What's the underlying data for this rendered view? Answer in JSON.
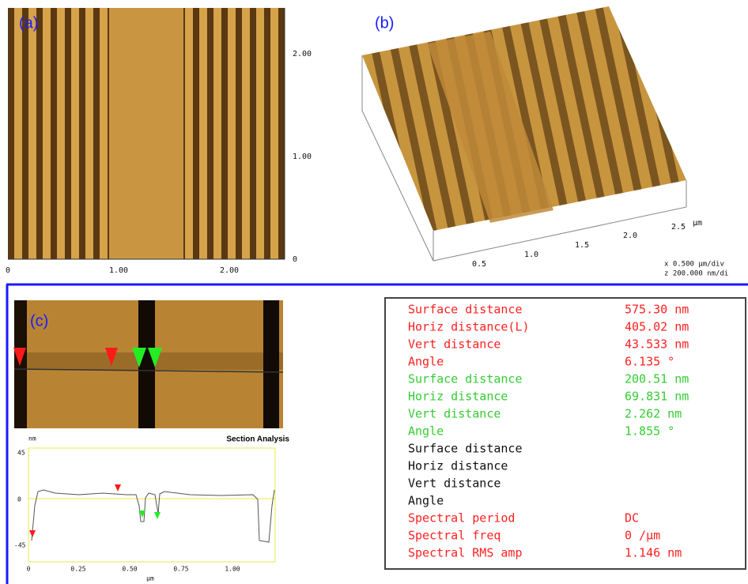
{
  "panel_a": {
    "label": "(a)",
    "x_ticks": [
      "0",
      "1.00",
      "2.00"
    ],
    "y_ticks": [
      "2.00",
      "1.00",
      "0"
    ]
  },
  "panel_b": {
    "label": "(b)",
    "x_ticks": [
      "0.5",
      "1.0",
      "1.5",
      "2.0",
      "2.5"
    ],
    "x_unit": "µm",
    "scale_lines": [
      "x  0.500 µm/div",
      "z  200.000 nm/di"
    ]
  },
  "panel_c": {
    "label": "(c)",
    "section_title": "Section Analysis",
    "y_unit": "nm",
    "y_ticks": [
      "45",
      "0",
      "-45"
    ],
    "x_ticks": [
      "0",
      "0.25",
      "0.50",
      "0.75",
      "1.00"
    ],
    "x_unit": "µm"
  },
  "measurements": {
    "rows": [
      {
        "label": "Surface distance",
        "value": "575.30 nm",
        "color": "#ff2020"
      },
      {
        "label": "Horiz distance(L)",
        "value": "405.02 nm",
        "color": "#ff2020"
      },
      {
        "label": "Vert distance",
        "value": "43.533 nm",
        "color": "#ff2020"
      },
      {
        "label": "Angle",
        "value": "6.135 °",
        "color": "#ff2020"
      },
      {
        "label": "Surface distance",
        "value": "200.51 nm",
        "color": "#33cc33"
      },
      {
        "label": "Horiz distance",
        "value": "69.831 nm",
        "color": "#33cc33"
      },
      {
        "label": "Vert distance",
        "value": "2.262 nm",
        "color": "#33cc33"
      },
      {
        "label": "Angle",
        "value": "1.855 °",
        "color": "#33cc33"
      },
      {
        "label": "Surface distance",
        "color": "#111111"
      },
      {
        "label": "Horiz distance",
        "color": "#111111"
      },
      {
        "label": "Vert distance",
        "color": "#111111"
      },
      {
        "label": "Angle",
        "color": "#111111"
      },
      {
        "label": "Spectral period",
        "value": "DC",
        "color": "#ff2020"
      },
      {
        "label": "Spectral freq",
        "value": "0 /µm",
        "color": "#ff2020"
      },
      {
        "label": "Spectral RMS amp",
        "value": "1.146 nm",
        "color": "#ff2020"
      }
    ]
  }
}
